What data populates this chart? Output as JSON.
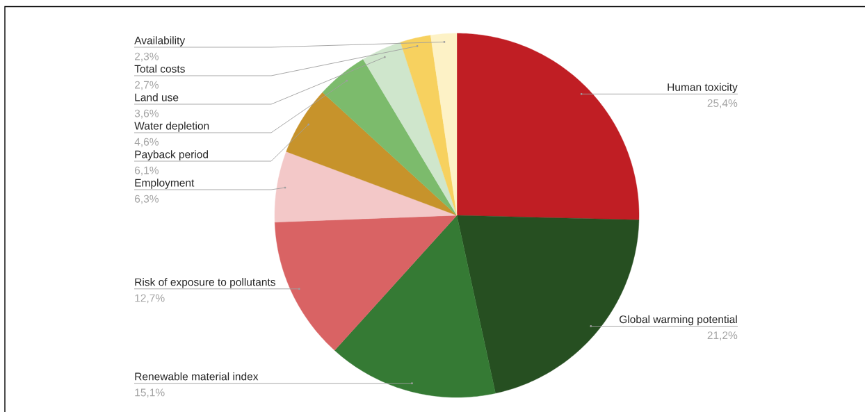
{
  "chart_data": {
    "type": "pie",
    "categories": [
      "Human toxicity",
      "Global warming potential",
      "Renewable material index",
      "Risk of exposure to pollutants",
      "Employment",
      "Payback period",
      "Water depletion",
      "Land use",
      "Total costs",
      "Availability"
    ],
    "values": [
      25.4,
      21.2,
      15.1,
      12.7,
      6.3,
      6.1,
      4.6,
      3.6,
      2.7,
      2.3
    ],
    "colors": [
      "#c01e24",
      "#264f21",
      "#357a34",
      "#d96364",
      "#f3c8c8",
      "#c7932b",
      "#7cbb6c",
      "#cfe6cc",
      "#f7d15f",
      "#fdf2c6"
    ],
    "value_labels": [
      "25,4%",
      "21,2%",
      "15,1%",
      "12,7%",
      "6,3%",
      "6,1%",
      "4,6%",
      "3,6%",
      "2,7%",
      "2,3%"
    ]
  }
}
